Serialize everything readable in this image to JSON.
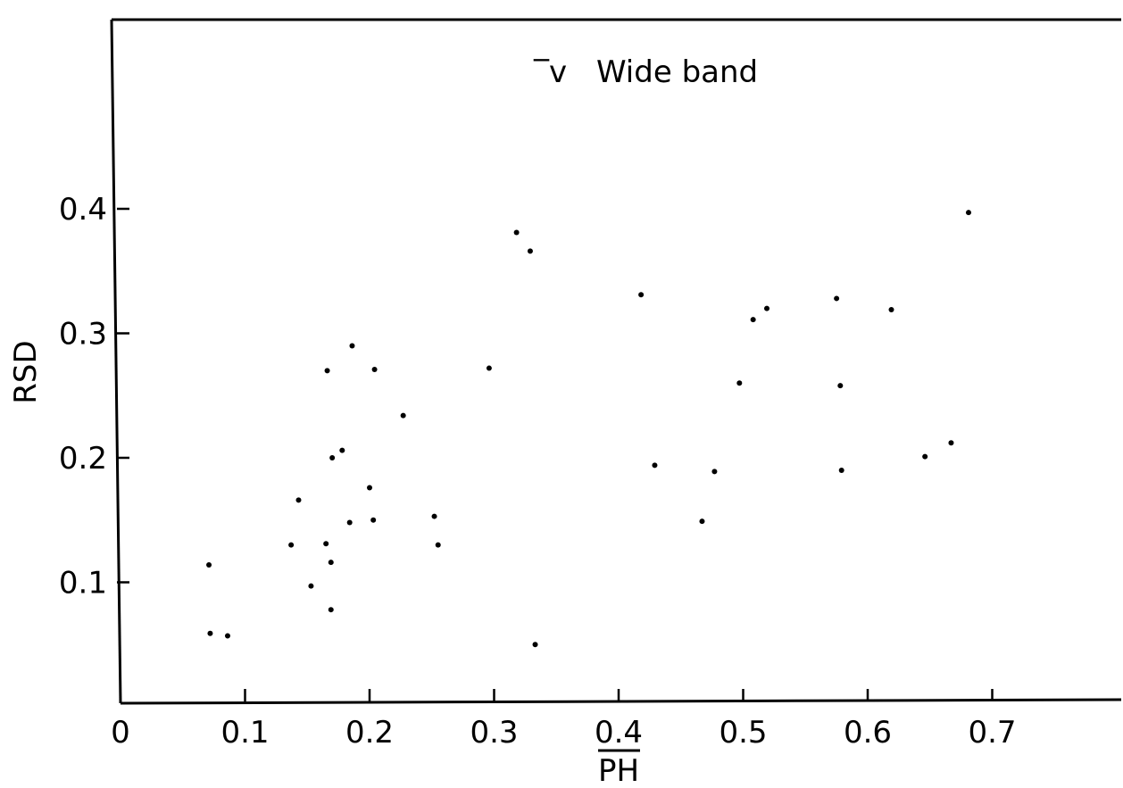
{
  "chart_data": {
    "type": "scatter",
    "title_prefix": "̅v",
    "title_text": "Wide band",
    "xlabel": "PH",
    "ylabel": "RSD",
    "xlim": [
      0,
      0.8
    ],
    "ylim": [
      0,
      0.55
    ],
    "xticks": [
      0,
      0.1,
      0.2,
      0.3,
      0.4,
      0.5,
      0.6,
      0.7
    ],
    "xtick_labels": [
      "0",
      "0.1",
      "0.2",
      "0.3",
      "0.4",
      "0.5",
      "0.6",
      "0.7"
    ],
    "yticks": [
      0.1,
      0.2,
      0.3,
      0.4
    ],
    "ytick_labels": [
      "0.1",
      "0.2",
      "0.3",
      "0.4"
    ],
    "grid": false,
    "x": [
      0.071,
      0.072,
      0.086,
      0.137,
      0.143,
      0.153,
      0.165,
      0.166,
      0.169,
      0.169,
      0.17,
      0.178,
      0.184,
      0.186,
      0.2,
      0.203,
      0.204,
      0.227,
      0.252,
      0.255,
      0.296,
      0.318,
      0.329,
      0.333,
      0.418,
      0.429,
      0.467,
      0.477,
      0.497,
      0.508,
      0.519,
      0.575,
      0.578,
      0.579,
      0.619,
      0.646,
      0.667,
      0.681
    ],
    "y": [
      0.114,
      0.059,
      0.057,
      0.13,
      0.166,
      0.097,
      0.131,
      0.27,
      0.078,
      0.116,
      0.2,
      0.206,
      0.148,
      0.29,
      0.176,
      0.15,
      0.271,
      0.234,
      0.153,
      0.13,
      0.272,
      0.381,
      0.366,
      0.05,
      0.331,
      0.194,
      0.149,
      0.189,
      0.26,
      0.311,
      0.32,
      0.328,
      0.258,
      0.19,
      0.319,
      0.201,
      0.212,
      0.397
    ]
  }
}
